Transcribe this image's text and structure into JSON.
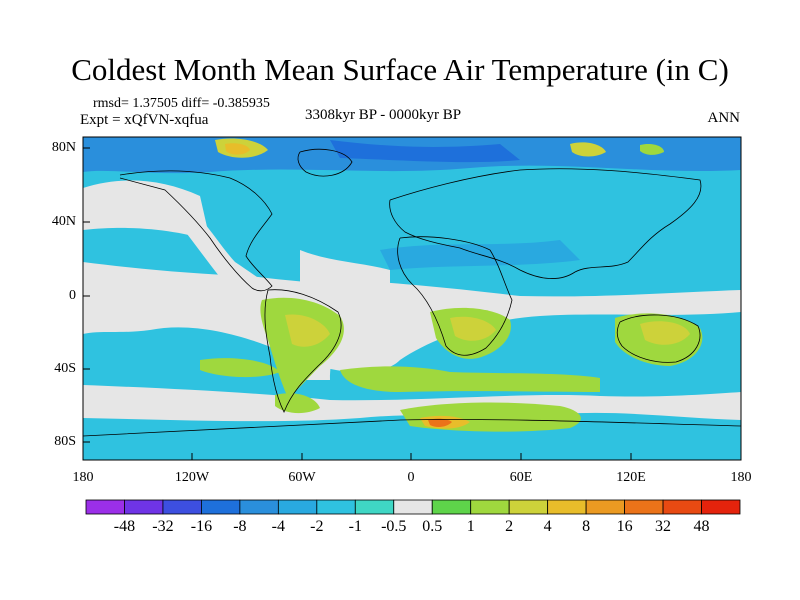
{
  "title": "Coldest Month Mean Surface Air Temperature (in C)",
  "stats": {
    "text": "rmsd= 1.37505 diff= -0.385935"
  },
  "experiment": "Expt = xQfVN-xqfua",
  "period": "3308kyr BP - 0000kyr BP",
  "season": "ANN",
  "lat_labels": [
    "80N",
    "40N",
    "0",
    "40S",
    "80S"
  ],
  "lon_labels": [
    "180",
    "120W",
    "60W",
    "0",
    "60E",
    "120E",
    "180"
  ],
  "colorbar": {
    "labels": [
      "-48",
      "-32",
      "-16",
      "-8",
      "-4",
      "-2",
      "-1",
      "-0.5",
      "0.5",
      "1",
      "2",
      "4",
      "8",
      "16",
      "32",
      "48"
    ],
    "colors": [
      "#9b2fe8",
      "#6f34e6",
      "#3d4fe0",
      "#1e70db",
      "#2a8fdc",
      "#29a9e0",
      "#2fc2e0",
      "#3fd6c4",
      "#e6e6e6",
      "#5ed44a",
      "#9fd83e",
      "#cdd23a",
      "#e8bd2a",
      "#eb9a22",
      "#eb7319",
      "#e84a12",
      "#e4230c"
    ]
  },
  "map_colors": {
    "neutral": "#e6e6e6",
    "cool1": "#3fd6c4",
    "cool2": "#2fc2e0",
    "cool3": "#29a9e0",
    "cool4": "#2a8fdc",
    "cool5": "#1e70db",
    "warm1": "#9fd83e",
    "warm2": "#cdd23a",
    "warm3": "#e8bd2a",
    "warm4": "#eb7319",
    "warm5": "#e84a12",
    "coast": "#000000"
  }
}
